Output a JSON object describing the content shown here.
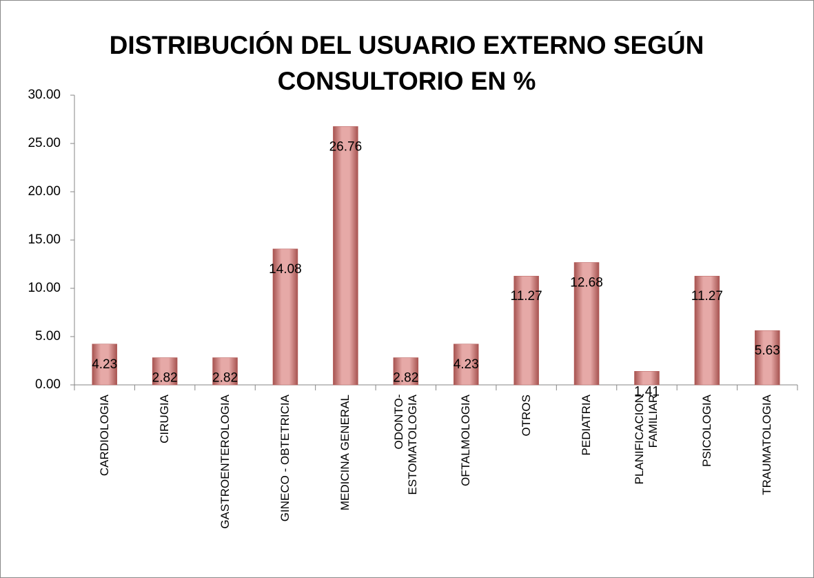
{
  "chart_data": {
    "type": "bar",
    "title": "DISTRIBUCIÓN DEL USUARIO EXTERNO SEGÚN CONSULTORIO EN %",
    "categories": [
      "CARDIOLOGIA",
      "CIRUGIA",
      "GASTROENTEROLOGIA",
      "GINECO - OBTETRICIA",
      "MEDICINA GENERAL",
      "ODONTO-\nESTOMATOLOGIA",
      "OFTALMOLOGIA",
      "OTROS",
      "PEDIATRIA",
      "PLANIFICACION\nFAMILIAR",
      "PSICOLOGIA",
      "TRAUMATOLOGIA"
    ],
    "values": [
      4.23,
      2.82,
      2.82,
      14.08,
      26.76,
      2.82,
      4.23,
      11.27,
      12.68,
      1.41,
      11.27,
      5.63
    ],
    "color": "#d99694",
    "ylim": [
      0,
      30
    ],
    "yticks": [
      {
        "value": 0,
        "label": "0.00"
      },
      {
        "value": 5,
        "label": "5.00"
      },
      {
        "value": 10,
        "label": "10.00"
      },
      {
        "value": 15,
        "label": "15.00"
      },
      {
        "value": 20,
        "label": "20.00"
      },
      {
        "value": 25,
        "label": "25.00"
      },
      {
        "value": 30,
        "label": "30.00"
      }
    ],
    "grid": false
  }
}
